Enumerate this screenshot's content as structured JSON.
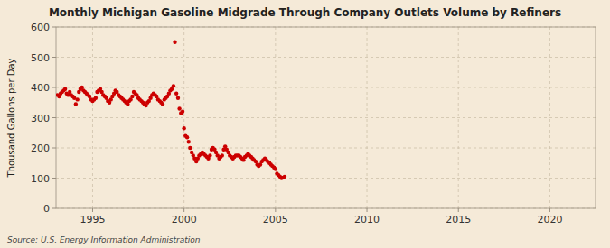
{
  "chart_data": {
    "type": "scatter",
    "title": "Monthly Michigan Gasoline Midgrade Through Company Outlets Volume by Refiners",
    "y_label": "Thousand Gallons per Day",
    "annotations": [
      "Source: U.S. Energy Information Administration"
    ],
    "color": "#cc0000",
    "grid": true,
    "xlim": [
      1993.0,
      2022.5
    ],
    "xticks": [
      1995,
      2000,
      2005,
      2010,
      2015,
      2020
    ],
    "ylim": [
      0,
      600
    ],
    "yticks": [
      0,
      100,
      200,
      300,
      400,
      500,
      600
    ],
    "x": [
      1993.08,
      1993.17,
      1993.25,
      1993.33,
      1993.42,
      1993.5,
      1993.58,
      1993.67,
      1993.75,
      1993.83,
      1993.92,
      1994.0,
      1994.08,
      1994.17,
      1994.25,
      1994.33,
      1994.42,
      1994.5,
      1994.58,
      1994.67,
      1994.75,
      1994.83,
      1994.92,
      1995.0,
      1995.08,
      1995.17,
      1995.25,
      1995.33,
      1995.42,
      1995.5,
      1995.58,
      1995.67,
      1995.75,
      1995.83,
      1995.92,
      1996.0,
      1996.08,
      1996.17,
      1996.25,
      1996.33,
      1996.42,
      1996.5,
      1996.58,
      1996.67,
      1996.75,
      1996.83,
      1996.92,
      1997.0,
      1997.08,
      1997.17,
      1997.25,
      1997.33,
      1997.42,
      1997.5,
      1997.58,
      1997.67,
      1997.75,
      1997.83,
      1997.92,
      1998.0,
      1998.08,
      1998.17,
      1998.25,
      1998.33,
      1998.42,
      1998.5,
      1998.58,
      1998.67,
      1998.75,
      1998.83,
      1998.92,
      1999.0,
      1999.08,
      1999.17,
      1999.25,
      1999.33,
      1999.42,
      1999.5,
      1999.58,
      1999.67,
      1999.75,
      1999.83,
      1999.92,
      2000.0,
      2000.08,
      2000.17,
      2000.25,
      2000.33,
      2000.42,
      2000.5,
      2000.58,
      2000.67,
      2000.75,
      2000.83,
      2000.92,
      2001.0,
      2001.08,
      2001.17,
      2001.25,
      2001.33,
      2001.42,
      2001.5,
      2001.58,
      2001.67,
      2001.75,
      2001.83,
      2001.92,
      2002.0,
      2002.08,
      2002.17,
      2002.25,
      2002.33,
      2002.42,
      2002.5,
      2002.58,
      2002.67,
      2002.75,
      2002.83,
      2002.92,
      2003.0,
      2003.08,
      2003.17,
      2003.25,
      2003.33,
      2003.42,
      2003.5,
      2003.58,
      2003.67,
      2003.75,
      2003.83,
      2003.92,
      2004.0,
      2004.08,
      2004.17,
      2004.25,
      2004.33,
      2004.42,
      2004.5,
      2004.58,
      2004.67,
      2004.75,
      2004.83,
      2004.92,
      2005.0,
      2005.08,
      2005.17,
      2005.25,
      2005.33,
      2005.42,
      2005.5
    ],
    "values": [
      375,
      370,
      380,
      385,
      390,
      395,
      380,
      375,
      385,
      375,
      370,
      365,
      345,
      360,
      385,
      395,
      400,
      390,
      385,
      380,
      375,
      370,
      360,
      355,
      360,
      365,
      385,
      390,
      395,
      385,
      375,
      370,
      365,
      355,
      350,
      360,
      370,
      380,
      390,
      385,
      375,
      370,
      365,
      360,
      355,
      350,
      345,
      355,
      360,
      370,
      385,
      380,
      375,
      365,
      360,
      355,
      350,
      345,
      340,
      350,
      355,
      365,
      375,
      380,
      375,
      370,
      360,
      355,
      350,
      345,
      360,
      365,
      370,
      380,
      390,
      395,
      405,
      550,
      380,
      365,
      330,
      315,
      320,
      265,
      240,
      235,
      220,
      200,
      185,
      175,
      165,
      155,
      165,
      175,
      180,
      185,
      180,
      175,
      170,
      165,
      175,
      195,
      200,
      195,
      185,
      175,
      165,
      170,
      175,
      195,
      205,
      195,
      185,
      175,
      170,
      165,
      170,
      175,
      175,
      175,
      170,
      165,
      160,
      170,
      175,
      180,
      175,
      170,
      165,
      160,
      155,
      145,
      140,
      145,
      155,
      160,
      165,
      160,
      155,
      150,
      145,
      140,
      135,
      130,
      115,
      110,
      105,
      100,
      102,
      105
    ]
  }
}
